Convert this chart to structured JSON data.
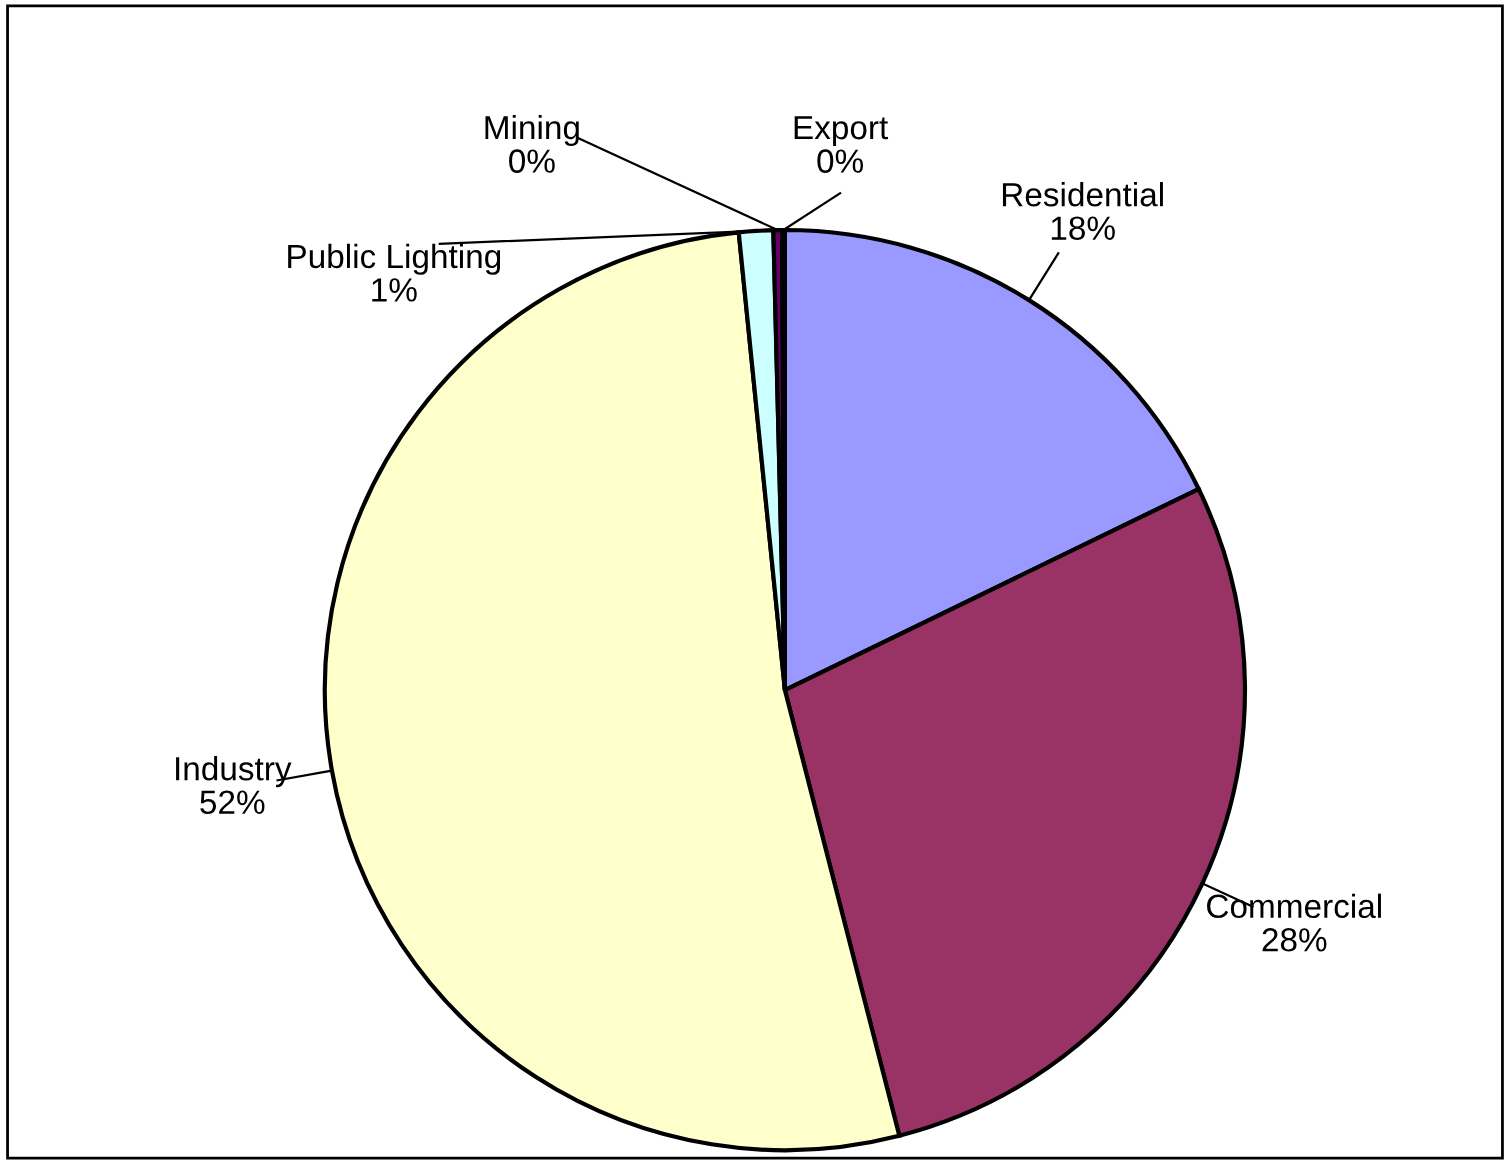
{
  "chart_data": {
    "type": "pie",
    "categories": [
      "Residential",
      "Commercial",
      "Industry",
      "Public Lighting",
      "Mining",
      "Export"
    ],
    "values": [
      17.8,
      28.2,
      52.4,
      1.2,
      0.3,
      0.1
    ],
    "value_labels": [
      "18%",
      "28%",
      "52%",
      "1%",
      "0%",
      "0%"
    ],
    "colors": [
      "#9999ff",
      "#993366",
      "#ffffcc",
      "#ccffff",
      "#660066",
      "#ff8080"
    ],
    "legend": false
  }
}
